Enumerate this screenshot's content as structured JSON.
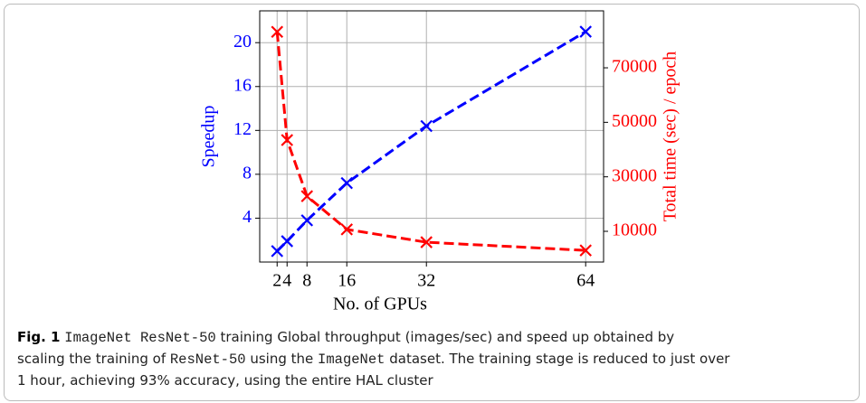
{
  "chart_data": {
    "type": "line",
    "x": [
      2,
      4,
      8,
      16,
      32,
      64
    ],
    "xlabel": "No. of GPUs",
    "ylabel": "Speedup",
    "y2label": "Total time (sec) / epoch",
    "series": [
      {
        "name": "Speedup",
        "color": "#0000ff",
        "values": [
          1,
          1.9,
          3.8,
          7.2,
          12.4,
          21
        ]
      },
      {
        "name": "Total time",
        "color": "#ff0000",
        "axis": "y2",
        "values": [
          83200,
          43500,
          22900,
          10700,
          6000,
          3000
        ]
      }
    ],
    "xlim": [
      -1.5,
      67.6
    ],
    "xticks": [
      2,
      4,
      8,
      16,
      32,
      64
    ],
    "ylim": [
      0,
      22.9
    ],
    "yticks": [
      4,
      8,
      12,
      16,
      20
    ],
    "y2lim": [
      -1270,
      90900
    ],
    "y2ticks": [
      10000,
      30000,
      50000,
      70000
    ],
    "grid": true
  },
  "caption": {
    "lines": [
      [
        {
          "text": "Fig. 1",
          "style": "bold"
        },
        {
          "text": " ",
          "style": "normal"
        },
        {
          "text": "ImageNet ResNet-50",
          "style": "mono"
        },
        {
          "text": " training Global throughput (images/sec) and speed up obtained by",
          "style": "normal"
        }
      ],
      [
        {
          "text": "scaling the training of ",
          "style": "normal"
        },
        {
          "text": "ResNet-50",
          "style": "mono"
        },
        {
          "text": " using the ",
          "style": "normal"
        },
        {
          "text": "ImageNet",
          "style": "mono"
        },
        {
          "text": " dataset. The training stage is reduced to just over",
          "style": "normal"
        }
      ],
      [
        {
          "text": "1 hour, achieving 93% accuracy, using the entire HAL cluster",
          "style": "normal"
        }
      ]
    ]
  }
}
